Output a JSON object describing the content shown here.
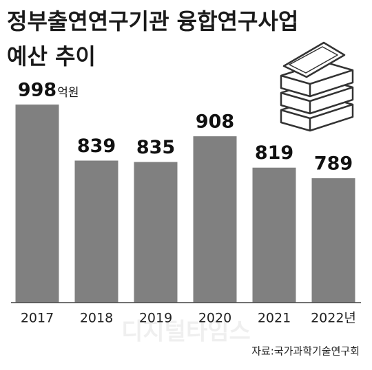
{
  "chart_data": {
    "type": "bar",
    "title_lines": [
      "정부출연연구기관 융합연구사업",
      "예산 추이"
    ],
    "categories": [
      "2017",
      "2018",
      "2019",
      "2020",
      "2021",
      "2022년"
    ],
    "values": [
      998,
      839,
      835,
      908,
      819,
      789
    ],
    "value_unit": "억원",
    "color": "#808080",
    "ylim": [
      436,
      1000
    ],
    "watermark": "디지털타임스",
    "source": "자료:국가과학기술연구회"
  }
}
